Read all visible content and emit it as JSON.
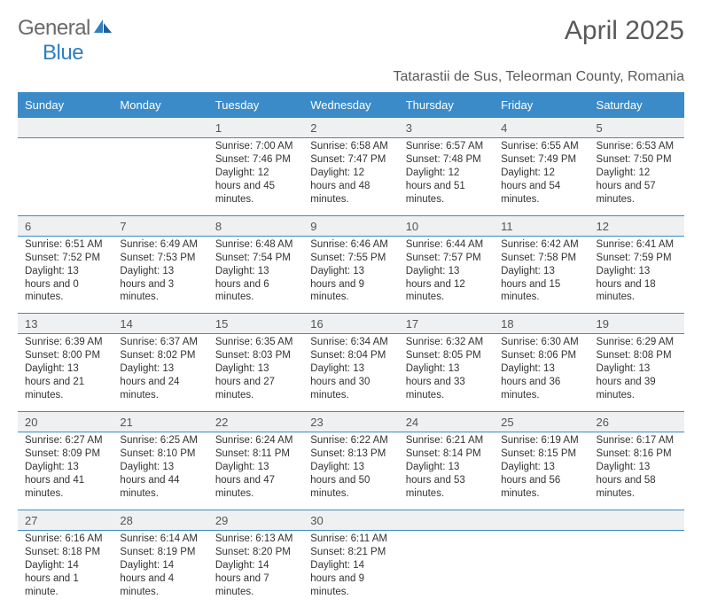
{
  "brand": {
    "word1": "General",
    "word2": "Blue"
  },
  "title": "April 2025",
  "location": "Tatarastii de Sus, Teleorman County, Romania",
  "colors": {
    "header_bg": "#3b8bc9",
    "header_text": "#ffffff",
    "daynum_bg": "#eef0f1",
    "border": "#3b8bc9",
    "title_color": "#5a5a5a",
    "logo_gray": "#6a6a6a",
    "logo_blue": "#2f7fbf"
  },
  "weekdays": [
    "Sunday",
    "Monday",
    "Tuesday",
    "Wednesday",
    "Thursday",
    "Friday",
    "Saturday"
  ],
  "weeks": [
    [
      null,
      null,
      {
        "n": "1",
        "sr": "7:00 AM",
        "ss": "7:46 PM",
        "dl": "12 hours and 45 minutes."
      },
      {
        "n": "2",
        "sr": "6:58 AM",
        "ss": "7:47 PM",
        "dl": "12 hours and 48 minutes."
      },
      {
        "n": "3",
        "sr": "6:57 AM",
        "ss": "7:48 PM",
        "dl": "12 hours and 51 minutes."
      },
      {
        "n": "4",
        "sr": "6:55 AM",
        "ss": "7:49 PM",
        "dl": "12 hours and 54 minutes."
      },
      {
        "n": "5",
        "sr": "6:53 AM",
        "ss": "7:50 PM",
        "dl": "12 hours and 57 minutes."
      }
    ],
    [
      {
        "n": "6",
        "sr": "6:51 AM",
        "ss": "7:52 PM",
        "dl": "13 hours and 0 minutes."
      },
      {
        "n": "7",
        "sr": "6:49 AM",
        "ss": "7:53 PM",
        "dl": "13 hours and 3 minutes."
      },
      {
        "n": "8",
        "sr": "6:48 AM",
        "ss": "7:54 PM",
        "dl": "13 hours and 6 minutes."
      },
      {
        "n": "9",
        "sr": "6:46 AM",
        "ss": "7:55 PM",
        "dl": "13 hours and 9 minutes."
      },
      {
        "n": "10",
        "sr": "6:44 AM",
        "ss": "7:57 PM",
        "dl": "13 hours and 12 minutes."
      },
      {
        "n": "11",
        "sr": "6:42 AM",
        "ss": "7:58 PM",
        "dl": "13 hours and 15 minutes."
      },
      {
        "n": "12",
        "sr": "6:41 AM",
        "ss": "7:59 PM",
        "dl": "13 hours and 18 minutes."
      }
    ],
    [
      {
        "n": "13",
        "sr": "6:39 AM",
        "ss": "8:00 PM",
        "dl": "13 hours and 21 minutes."
      },
      {
        "n": "14",
        "sr": "6:37 AM",
        "ss": "8:02 PM",
        "dl": "13 hours and 24 minutes."
      },
      {
        "n": "15",
        "sr": "6:35 AM",
        "ss": "8:03 PM",
        "dl": "13 hours and 27 minutes."
      },
      {
        "n": "16",
        "sr": "6:34 AM",
        "ss": "8:04 PM",
        "dl": "13 hours and 30 minutes."
      },
      {
        "n": "17",
        "sr": "6:32 AM",
        "ss": "8:05 PM",
        "dl": "13 hours and 33 minutes."
      },
      {
        "n": "18",
        "sr": "6:30 AM",
        "ss": "8:06 PM",
        "dl": "13 hours and 36 minutes."
      },
      {
        "n": "19",
        "sr": "6:29 AM",
        "ss": "8:08 PM",
        "dl": "13 hours and 39 minutes."
      }
    ],
    [
      {
        "n": "20",
        "sr": "6:27 AM",
        "ss": "8:09 PM",
        "dl": "13 hours and 41 minutes."
      },
      {
        "n": "21",
        "sr": "6:25 AM",
        "ss": "8:10 PM",
        "dl": "13 hours and 44 minutes."
      },
      {
        "n": "22",
        "sr": "6:24 AM",
        "ss": "8:11 PM",
        "dl": "13 hours and 47 minutes."
      },
      {
        "n": "23",
        "sr": "6:22 AM",
        "ss": "8:13 PM",
        "dl": "13 hours and 50 minutes."
      },
      {
        "n": "24",
        "sr": "6:21 AM",
        "ss": "8:14 PM",
        "dl": "13 hours and 53 minutes."
      },
      {
        "n": "25",
        "sr": "6:19 AM",
        "ss": "8:15 PM",
        "dl": "13 hours and 56 minutes."
      },
      {
        "n": "26",
        "sr": "6:17 AM",
        "ss": "8:16 PM",
        "dl": "13 hours and 58 minutes."
      }
    ],
    [
      {
        "n": "27",
        "sr": "6:16 AM",
        "ss": "8:18 PM",
        "dl": "14 hours and 1 minute."
      },
      {
        "n": "28",
        "sr": "6:14 AM",
        "ss": "8:19 PM",
        "dl": "14 hours and 4 minutes."
      },
      {
        "n": "29",
        "sr": "6:13 AM",
        "ss": "8:20 PM",
        "dl": "14 hours and 7 minutes."
      },
      {
        "n": "30",
        "sr": "6:11 AM",
        "ss": "8:21 PM",
        "dl": "14 hours and 9 minutes."
      },
      null,
      null,
      null
    ]
  ],
  "labels": {
    "sunrise": "Sunrise:",
    "sunset": "Sunset:",
    "daylight": "Daylight:"
  }
}
